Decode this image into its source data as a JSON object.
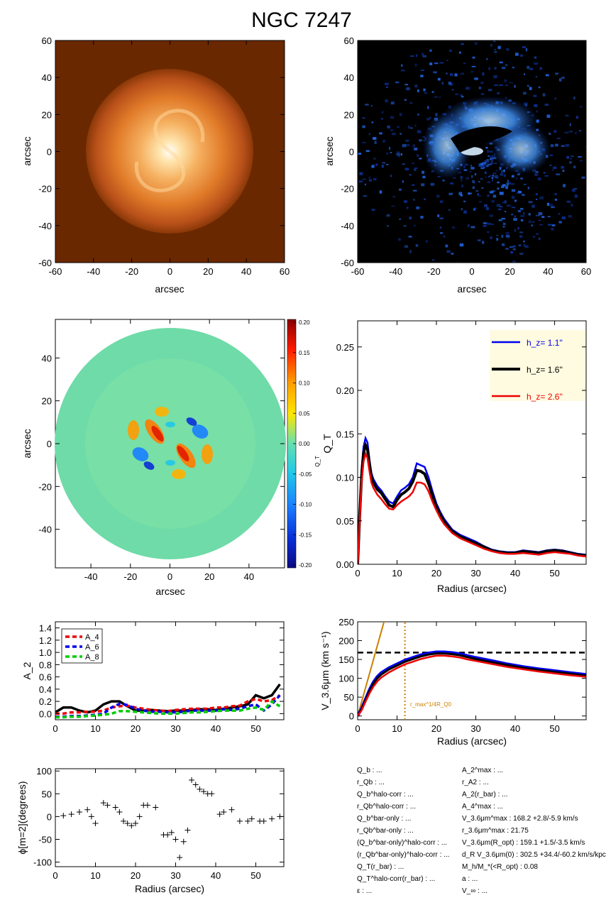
{
  "title": "NGC 7247",
  "colors": {
    "blue": "#0000ee",
    "black": "#000000",
    "red": "#ee0000",
    "green": "#00cc00",
    "orange": "#cc8000",
    "legend_bg": "#fffbe0"
  },
  "chart_data": [
    {
      "type": "heatmap",
      "name": "optical-image",
      "xlabel": "arcsec",
      "ylabel": "arcsec",
      "xlim": [
        -60,
        60
      ],
      "ylim": [
        -60,
        60
      ],
      "xticks": [
        "-60",
        "-40",
        "-20",
        "0",
        "20",
        "40",
        "60"
      ],
      "yticks": [
        "-60",
        "-40",
        "-20",
        "0",
        "20",
        "40",
        "60"
      ],
      "colormap": "orange"
    },
    {
      "type": "heatmap",
      "name": "residual-image",
      "xlabel": "arcsec",
      "ylabel": "arcsec",
      "xlim": [
        -60,
        60
      ],
      "ylim": [
        -60,
        60
      ],
      "xticks": [
        "-60",
        "-40",
        "-20",
        "0",
        "20",
        "40",
        "60"
      ],
      "yticks": [
        "-60",
        "-40",
        "-20",
        "0",
        "20",
        "40",
        "60"
      ],
      "colormap": "blue"
    },
    {
      "type": "heatmap",
      "name": "force-ratio-map",
      "xlabel": "arcsec",
      "ylabel": "arcsec",
      "xlim": [
        -58,
        58
      ],
      "ylim": [
        -58,
        58
      ],
      "xticks": [
        "-40",
        "-20",
        "0",
        "20",
        "40"
      ],
      "yticks": [
        "-40",
        "-20",
        "0",
        "20",
        "40"
      ],
      "colorbar": {
        "ticks": [
          "0.20",
          "0.15",
          "0.10",
          "0.05",
          "0.00",
          "-0.05",
          "-0.10",
          "-0.15",
          "-0.20"
        ],
        "label": "Q_T"
      }
    },
    {
      "type": "line",
      "name": "qt-profile",
      "xlabel": "Radius (arcsec)",
      "ylabel": "Q_T",
      "xlim": [
        0,
        58
      ],
      "ylim": [
        0,
        0.28
      ],
      "xticks": [
        "0",
        "10",
        "20",
        "30",
        "40",
        "50"
      ],
      "yticks": [
        "0.00",
        "0.05",
        "0.10",
        "0.15",
        "0.20",
        "0.25"
      ],
      "x": [
        0,
        0.5,
        1,
        1.5,
        2,
        2.5,
        3,
        3.5,
        4,
        5,
        6,
        7,
        8,
        9,
        10,
        11,
        12,
        13,
        14,
        15,
        16,
        17,
        18,
        19,
        20,
        21,
        22,
        24,
        26,
        28,
        30,
        32,
        34,
        36,
        38,
        40,
        42,
        44,
        46,
        48,
        50,
        52,
        54,
        56,
        58
      ],
      "series": [
        {
          "name": "h_z=  1.1''",
          "color": "blue",
          "values": [
            0,
            0.06,
            0.11,
            0.135,
            0.145,
            0.14,
            0.12,
            0.105,
            0.098,
            0.09,
            0.085,
            0.078,
            0.072,
            0.07,
            0.078,
            0.085,
            0.088,
            0.092,
            0.1,
            0.116,
            0.114,
            0.112,
            0.1,
            0.084,
            0.07,
            0.06,
            0.052,
            0.04,
            0.034,
            0.03,
            0.026,
            0.021,
            0.017,
            0.015,
            0.014,
            0.014,
            0.016,
            0.015,
            0.014,
            0.016,
            0.017,
            0.016,
            0.014,
            0.012,
            0.011
          ]
        },
        {
          "name": "h_z=  1.6''",
          "color": "black",
          "values": [
            0,
            0.055,
            0.102,
            0.128,
            0.137,
            0.132,
            0.115,
            0.1,
            0.094,
            0.086,
            0.082,
            0.075,
            0.068,
            0.066,
            0.074,
            0.08,
            0.083,
            0.087,
            0.095,
            0.108,
            0.107,
            0.104,
            0.093,
            0.079,
            0.066,
            0.057,
            0.049,
            0.038,
            0.032,
            0.028,
            0.024,
            0.02,
            0.016,
            0.014,
            0.013,
            0.013,
            0.015,
            0.014,
            0.013,
            0.015,
            0.016,
            0.015,
            0.013,
            0.011,
            0.01
          ]
        },
        {
          "name": "h_z=  2.6''",
          "color": "red",
          "values": [
            0,
            0.05,
            0.095,
            0.118,
            0.127,
            0.122,
            0.107,
            0.094,
            0.088,
            0.08,
            0.075,
            0.069,
            0.064,
            0.063,
            0.068,
            0.072,
            0.075,
            0.078,
            0.083,
            0.094,
            0.094,
            0.092,
            0.084,
            0.072,
            0.062,
            0.053,
            0.046,
            0.036,
            0.03,
            0.026,
            0.022,
            0.018,
            0.015,
            0.013,
            0.012,
            0.012,
            0.013,
            0.012,
            0.011,
            0.013,
            0.014,
            0.013,
            0.012,
            0.01,
            0.009
          ]
        }
      ],
      "legend": "top-right"
    },
    {
      "type": "line",
      "name": "fourier-amplitudes",
      "xlabel": "",
      "ylabel": "A_2",
      "xlim": [
        0,
        57
      ],
      "ylim": [
        -0.1,
        1.5
      ],
      "xticks": [
        "0",
        "10",
        "20",
        "30",
        "40",
        "50"
      ],
      "yticks": [
        "0.0",
        "0.2",
        "0.4",
        "0.6",
        "0.8",
        "1.0",
        "1.2",
        "1.4"
      ],
      "x": [
        0,
        2,
        4,
        6,
        8,
        10,
        12,
        14,
        16,
        18,
        20,
        22,
        24,
        26,
        28,
        30,
        32,
        34,
        36,
        38,
        40,
        42,
        44,
        46,
        48,
        50,
        52,
        54,
        56
      ],
      "series": [
        {
          "name": "A_2",
          "color": "black",
          "values": [
            0.02,
            0.1,
            0.1,
            0.05,
            0.02,
            0.05,
            0.15,
            0.2,
            0.2,
            0.12,
            0.05,
            0.05,
            0.06,
            0.05,
            0.04,
            0.05,
            0.05,
            0.06,
            0.07,
            0.07,
            0.06,
            0.08,
            0.1,
            0.12,
            0.15,
            0.3,
            0.25,
            0.3,
            0.48
          ]
        },
        {
          "name": "A_4",
          "color": "red",
          "values": [
            0.0,
            0.0,
            0.02,
            0.02,
            0.03,
            0.03,
            0.05,
            0.1,
            0.12,
            0.13,
            0.1,
            0.08,
            0.06,
            0.05,
            0.04,
            0.06,
            0.07,
            0.08,
            0.08,
            0.08,
            0.1,
            0.1,
            0.12,
            0.13,
            0.2,
            0.24,
            0.2,
            0.22,
            0.3
          ]
        },
        {
          "name": "A_6",
          "color": "blue",
          "values": [
            -0.05,
            -0.05,
            -0.04,
            -0.04,
            -0.03,
            -0.02,
            0.0,
            0.1,
            0.16,
            0.14,
            0.08,
            0.05,
            0.03,
            0.03,
            0.02,
            0.02,
            0.03,
            0.05,
            0.05,
            0.05,
            0.05,
            0.07,
            0.06,
            0.08,
            0.12,
            0.15,
            0.05,
            0.15,
            0.3
          ]
        },
        {
          "name": "A_8",
          "color": "green",
          "values": [
            -0.06,
            -0.06,
            -0.05,
            -0.05,
            -0.04,
            -0.03,
            -0.02,
            0.0,
            0.04,
            0.04,
            0.03,
            0.02,
            0.01,
            0.0,
            0.0,
            0.0,
            0.01,
            0.02,
            0.02,
            0.03,
            0.04,
            0.05,
            0.05,
            0.05,
            0.08,
            0.1,
            0.06,
            0.2,
            0.12
          ]
        }
      ],
      "legend": "top-left"
    },
    {
      "type": "line",
      "name": "rotation-curve",
      "xlabel": "Radius (arcsec)",
      "ylabel": "V_3.6μm (km s⁻¹)",
      "xlim": [
        0,
        58
      ],
      "ylim": [
        -10,
        250
      ],
      "xticks": [
        "0",
        "10",
        "20",
        "30",
        "40",
        "50"
      ],
      "yticks": [
        "0",
        "50",
        "100",
        "150",
        "200",
        "250"
      ],
      "vmax": 168.2,
      "r_marker": 12.0,
      "r_marker_label": "r_max^1/4R_Q0",
      "x": [
        0,
        1,
        2,
        3,
        4,
        5,
        6,
        8,
        10,
        12,
        14,
        16,
        18,
        20,
        22,
        24,
        26,
        28,
        30,
        34,
        38,
        42,
        46,
        50,
        54,
        58
      ],
      "series": [
        {
          "name": "h_z=  1.1''",
          "color": "blue",
          "values": [
            0,
            20,
            45,
            70,
            90,
            105,
            115,
            128,
            138,
            148,
            155,
            162,
            167,
            170,
            170,
            168,
            165,
            160,
            155,
            147,
            138,
            131,
            125,
            120,
            115,
            110
          ]
        },
        {
          "name": "h_z=  1.6''",
          "color": "black",
          "values": [
            0,
            18,
            42,
            66,
            86,
            100,
            110,
            124,
            134,
            144,
            151,
            158,
            163,
            166,
            166,
            164,
            161,
            156,
            151,
            143,
            135,
            128,
            122,
            117,
            112,
            107
          ]
        },
        {
          "name": "h_z=  2.6''",
          "color": "red",
          "values": [
            0,
            15,
            38,
            60,
            78,
            92,
            102,
            116,
            127,
            137,
            144,
            151,
            156,
            160,
            160,
            158,
            155,
            150,
            146,
            138,
            130,
            124,
            118,
            113,
            108,
            104
          ]
        }
      ]
    },
    {
      "type": "scatter",
      "name": "phase-angle",
      "xlabel": "Radius (arcsec)",
      "ylabel": "ϕ[m=2](degrees)",
      "xlim": [
        0,
        57
      ],
      "ylim": [
        -110,
        105
      ],
      "xticks": [
        "0",
        "10",
        "20",
        "30",
        "40",
        "50"
      ],
      "yticks": [
        "-100",
        "-50",
        "0",
        "50",
        "100"
      ],
      "x": [
        2,
        4,
        6,
        8,
        9,
        10,
        12,
        13,
        15,
        16,
        17,
        18,
        19,
        20,
        21,
        22,
        23,
        25,
        27,
        28,
        29,
        30,
        31,
        32,
        33,
        34,
        35,
        36,
        37,
        38,
        39,
        41,
        42,
        44,
        46,
        48,
        49,
        51,
        52,
        54,
        56
      ],
      "y": [
        2,
        5,
        10,
        15,
        0,
        -15,
        30,
        25,
        20,
        10,
        -10,
        -15,
        -20,
        -15,
        0,
        25,
        25,
        20,
        -40,
        -40,
        -35,
        -50,
        -90,
        -55,
        -30,
        80,
        70,
        60,
        55,
        50,
        50,
        5,
        10,
        15,
        -10,
        -10,
        -5,
        -10,
        -10,
        -5,
        0
      ]
    }
  ],
  "info": {
    "left": [
      "Q_b : ...",
      "r_Qb : ...",
      "Q_b^halo-corr : ...",
      "r_Qb^halo-corr : ...",
      "Q_b^bar-only : ...",
      "r_Qb^bar-only : ...",
      "(Q_b^bar-only)^halo-corr : ...",
      "(r_Qb^bar-only)^halo-corr : ...",
      "Q_T(r_bar) : ...",
      "Q_T^halo-corr(r_bar) : ...",
      "ε : ..."
    ],
    "right": [
      "A_2^max : ...",
      "r_A2 : ...",
      "A_2(r_bar) : ...",
      "A_4^max : ...",
      "V_3.6μm^max : 168.2 +2.8/-5.9 km/s",
      "r_3.6μm^max : 21.75",
      "V_3.6μm(R_opt) : 159.1 +1.5/-3.5 km/s",
      "d_R V_3.6μm(0) : 302.5 +34.4/-60.2 km/s/kpc",
      "M_h/M_*(<R_opt) : 0.08",
      "a : ...",
      "V_∞ : ..."
    ]
  }
}
